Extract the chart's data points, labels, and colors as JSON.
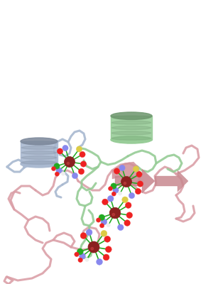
{
  "background_color": "#ffffff",
  "figsize": [
    3.07,
    4.0
  ],
  "dpi": 100,
  "chain_lw": 2.2,
  "pink_color": "#dba0a8",
  "blue_color": "#a8b8d0",
  "green_color": "#96cc96",
  "metal_color": "#8B2020",
  "metal_edge": "#5a0a0a",
  "stick_color": "#22aa22",
  "atom_colors": {
    "O": "#ee2222",
    "N": "#8888ee",
    "S": "#ddcc44",
    "H": "#eeeeee",
    "C": "#22aa22"
  }
}
